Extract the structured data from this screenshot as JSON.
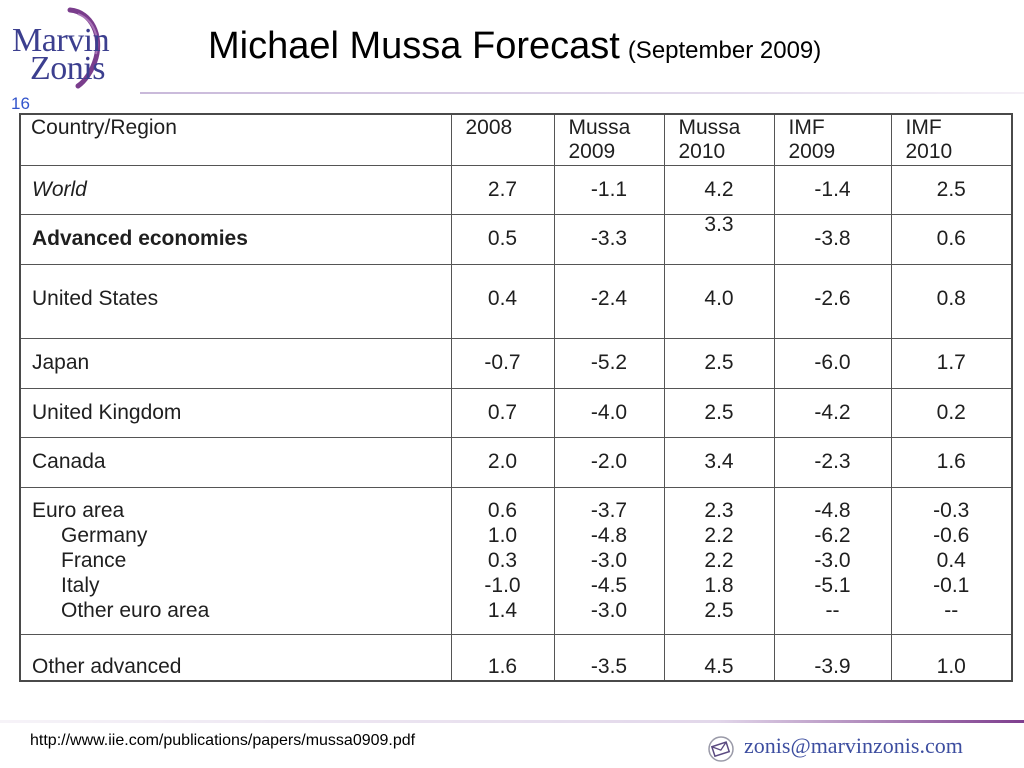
{
  "header": {
    "logo_line1": "Marvin",
    "logo_line2": "Zonis",
    "title": "Michael Mussa Forecast",
    "subtitle": "(September 2009)",
    "page_number": "16"
  },
  "table": {
    "columns": [
      "Country/Region",
      "2008",
      "Mussa 2009",
      "Mussa 2010",
      "IMF 2009",
      "IMF 2010"
    ],
    "column_lines": [
      [
        "Country/Region"
      ],
      [
        "2008"
      ],
      [
        "Mussa",
        "2009"
      ],
      [
        "Mussa",
        "2010"
      ],
      [
        "IMF",
        "2009"
      ],
      [
        "IMF",
        "2010"
      ]
    ],
    "world": [
      "World",
      "2.7",
      "-1.1",
      "4.2",
      "-1.4",
      "2.5"
    ],
    "advanced": [
      "Advanced economies",
      "0.5",
      "-3.3",
      "3.3",
      "-3.8",
      "0.6"
    ],
    "us": [
      "United States",
      "0.4",
      "-2.4",
      "4.0",
      "-2.6",
      "0.8"
    ],
    "japan": [
      "Japan",
      "-0.7",
      "-5.2",
      "2.5",
      "-6.0",
      "1.7"
    ],
    "uk": [
      "United Kingdom",
      "0.7",
      "-4.0",
      "2.5",
      "-4.2",
      "0.2"
    ],
    "canada": [
      "Canada",
      "2.0",
      "-2.0",
      "3.4",
      "-2.3",
      "1.6"
    ],
    "euro_group": [
      [
        "Euro area",
        "0.6",
        "-3.7",
        "2.3",
        "-4.8",
        "-0.3"
      ],
      [
        "Germany",
        "1.0",
        "-4.8",
        "2.2",
        "-6.2",
        "-0.6"
      ],
      [
        "France",
        "0.3",
        "-3.0",
        "2.2",
        "-3.0",
        "0.4"
      ],
      [
        "Italy",
        "-1.0",
        "-4.5",
        "1.8",
        "-5.1",
        "-0.1"
      ],
      [
        "Other euro area",
        "1.4",
        "-3.0",
        "2.5",
        "--",
        "--"
      ]
    ],
    "other_advanced": [
      "Other advanced",
      "1.6",
      "-3.5",
      "4.5",
      "-3.9",
      "1.0"
    ]
  },
  "footer": {
    "source_url": "http://www.iie.com/publications/papers/mussa0909.pdf",
    "email": "zonis@marvinzonis.com"
  }
}
